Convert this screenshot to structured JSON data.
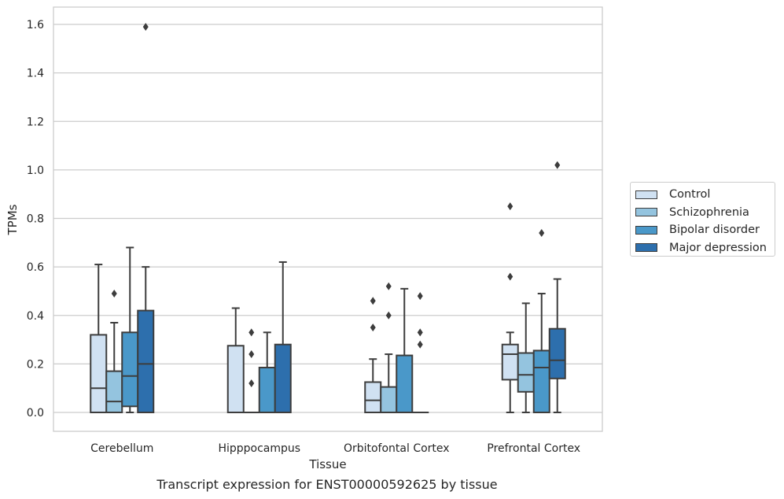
{
  "chart_data": {
    "type": "box",
    "title": "",
    "xlabel": "Tissue",
    "ylabel": "TPMs",
    "caption": "Transcript expression for ENST00000592625 by tissue",
    "categories": [
      "Cerebellum",
      "Hipppocampus",
      "Orbitofontal Cortex",
      "Prefrontal Cortex"
    ],
    "ylim": [
      -0.08,
      1.67
    ],
    "yticks": [
      "0.0",
      "0.2",
      "0.4",
      "0.6",
      "0.8",
      "1.0",
      "1.2",
      "1.4",
      "1.6"
    ],
    "grid": true,
    "legend_position": "right",
    "series": [
      {
        "name": "Control",
        "color": "#d0e1f2",
        "boxes": [
          {
            "whisker_low": 0.0,
            "q1": 0.0,
            "median": 0.1,
            "q3": 0.32,
            "whisker_high": 0.61,
            "outliers": []
          },
          {
            "whisker_low": 0.0,
            "q1": 0.0,
            "median": 0.0,
            "q3": 0.275,
            "whisker_high": 0.43,
            "outliers": []
          },
          {
            "whisker_low": 0.0,
            "q1": 0.0,
            "median": 0.05,
            "q3": 0.125,
            "whisker_high": 0.22,
            "outliers": [
              0.35,
              0.46
            ]
          },
          {
            "whisker_low": 0.0,
            "q1": 0.135,
            "median": 0.24,
            "q3": 0.28,
            "whisker_high": 0.33,
            "outliers": [
              0.56,
              0.85
            ]
          }
        ]
      },
      {
        "name": "Schizophrenia",
        "color": "#94c4df",
        "boxes": [
          {
            "whisker_low": 0.0,
            "q1": 0.0,
            "median": 0.045,
            "q3": 0.17,
            "whisker_high": 0.37,
            "outliers": [
              0.49
            ]
          },
          {
            "whisker_low": 0.0,
            "q1": 0.0,
            "median": 0.0,
            "q3": 0.0,
            "whisker_high": 0.0,
            "outliers": [
              0.12,
              0.24,
              0.33
            ]
          },
          {
            "whisker_low": 0.0,
            "q1": 0.0,
            "median": 0.0,
            "q3": 0.105,
            "whisker_high": 0.24,
            "outliers": [
              0.4,
              0.52
            ]
          },
          {
            "whisker_low": 0.0,
            "q1": 0.085,
            "median": 0.155,
            "q3": 0.245,
            "whisker_high": 0.45,
            "outliers": []
          }
        ]
      },
      {
        "name": "Bipolar disorder",
        "color": "#4a98c9",
        "boxes": [
          {
            "whisker_low": 0.0,
            "q1": 0.025,
            "median": 0.15,
            "q3": 0.33,
            "whisker_high": 0.68,
            "outliers": []
          },
          {
            "whisker_low": 0.0,
            "q1": 0.0,
            "median": 0.0,
            "q3": 0.185,
            "whisker_high": 0.33,
            "outliers": []
          },
          {
            "whisker_low": 0.0,
            "q1": 0.0,
            "median": 0.0,
            "q3": 0.235,
            "whisker_high": 0.51,
            "outliers": []
          },
          {
            "whisker_low": 0.0,
            "q1": 0.0,
            "median": 0.185,
            "q3": 0.255,
            "whisker_high": 0.49,
            "outliers": [
              0.74
            ]
          }
        ]
      },
      {
        "name": "Major depression",
        "color": "#2d6fad",
        "boxes": [
          {
            "whisker_low": 0.0,
            "q1": 0.0,
            "median": 0.2,
            "q3": 0.42,
            "whisker_high": 0.6,
            "outliers": [
              1.59
            ]
          },
          {
            "whisker_low": 0.0,
            "q1": 0.0,
            "median": 0.0,
            "q3": 0.28,
            "whisker_high": 0.62,
            "outliers": []
          },
          {
            "whisker_low": 0.0,
            "q1": 0.0,
            "median": 0.0,
            "q3": 0.0,
            "whisker_high": 0.0,
            "outliers": [
              0.28,
              0.33,
              0.48
            ]
          },
          {
            "whisker_low": 0.0,
            "q1": 0.14,
            "median": 0.215,
            "q3": 0.345,
            "whisker_high": 0.55,
            "outliers": [
              1.02
            ]
          }
        ]
      }
    ]
  }
}
